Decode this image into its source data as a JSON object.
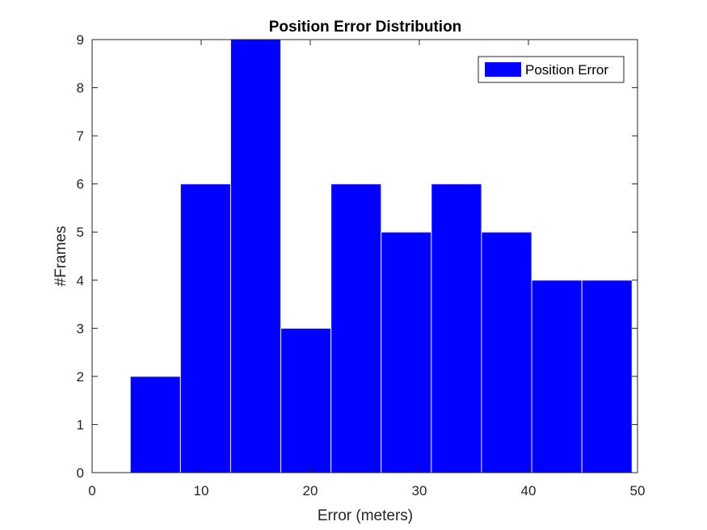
{
  "chart_data": {
    "type": "bar",
    "title": "Position Error Distribution",
    "xlabel": "Error (meters)",
    "ylabel": "#Frames",
    "xlim": [
      0,
      50
    ],
    "ylim": [
      0,
      9
    ],
    "xticks": [
      0,
      10,
      20,
      30,
      40,
      50
    ],
    "yticks": [
      0,
      1,
      2,
      3,
      4,
      5,
      6,
      7,
      8,
      9
    ],
    "bin_edges": [
      3.5,
      8.1,
      12.7,
      17.3,
      21.9,
      26.5,
      31.1,
      35.7,
      40.3,
      44.9,
      49.5
    ],
    "series": [
      {
        "name": "Position Error",
        "values": [
          2,
          6,
          9,
          3,
          6,
          5,
          6,
          5,
          4,
          4
        ]
      }
    ],
    "bar_color": "#0000ff",
    "bar_edge_color": "#e6e6e6",
    "grid": false,
    "legend_position": "top-right"
  }
}
